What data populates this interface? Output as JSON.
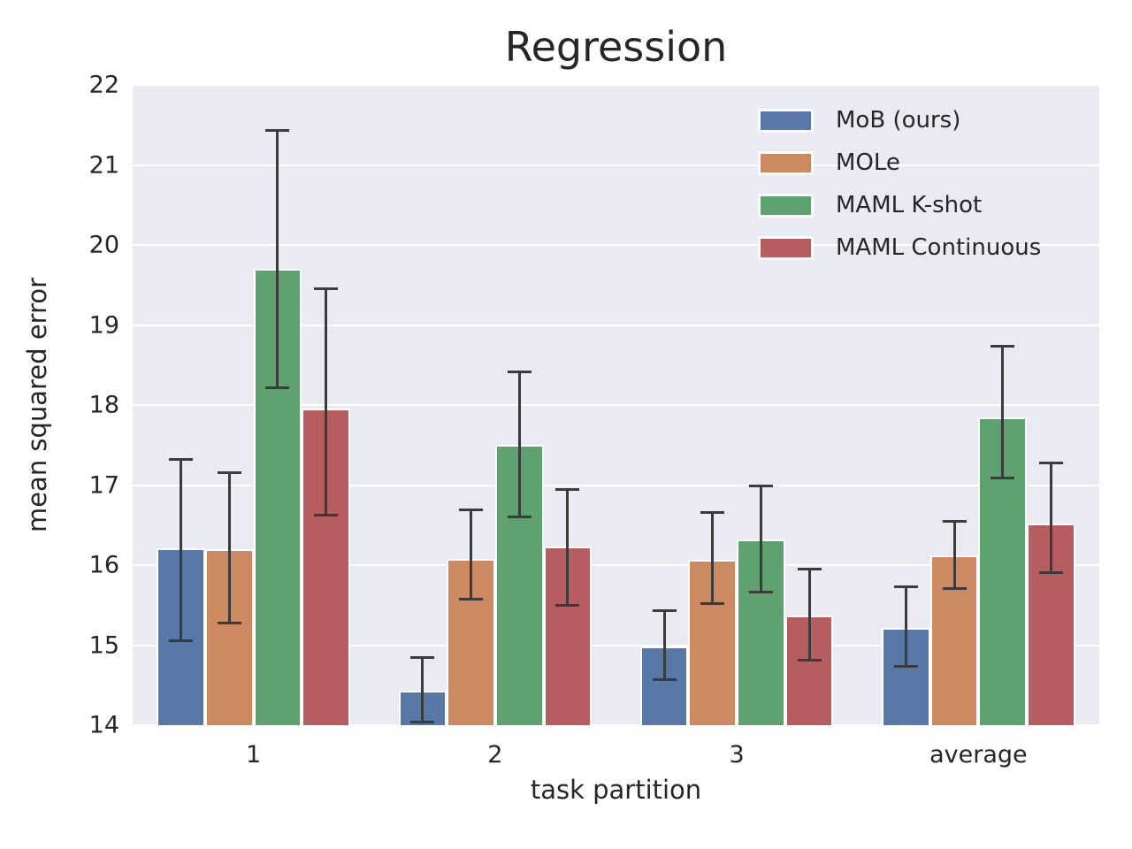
{
  "chart_data": {
    "type": "bar",
    "title": "Regression",
    "xlabel": "task partition",
    "ylabel": "mean squared error",
    "categories": [
      "1",
      "2",
      "3",
      "average"
    ],
    "ylim": [
      14,
      22
    ],
    "yticks": [
      14,
      15,
      16,
      17,
      18,
      19,
      20,
      21,
      22
    ],
    "grid": true,
    "legend_position": "upper right",
    "plot_bg_color": "#eaeaf2",
    "grid_color": "#ffffff",
    "error_bar_color": "#3b3b3b",
    "text_color": "#262626",
    "series": [
      {
        "name": "MoB (ours)",
        "color": "#5878a8",
        "values": [
          16.21,
          14.43,
          14.98,
          15.21
        ],
        "ci_low": [
          15.06,
          14.04,
          14.57,
          14.74
        ],
        "ci_high": [
          17.32,
          14.84,
          15.43,
          15.73
        ]
      },
      {
        "name": "MOLe",
        "color": "#cd8a62",
        "values": [
          16.2,
          16.08,
          16.07,
          16.12
        ],
        "ci_low": [
          15.28,
          15.58,
          15.52,
          15.71
        ],
        "ci_high": [
          17.15,
          16.69,
          16.66,
          16.55
        ]
      },
      {
        "name": "MAML K-shot",
        "color": "#5fa170",
        "values": [
          19.7,
          17.5,
          16.32,
          17.84
        ],
        "ci_low": [
          18.22,
          16.6,
          15.66,
          17.09
        ],
        "ci_high": [
          21.43,
          18.41,
          16.99,
          18.73
        ]
      },
      {
        "name": "MAML Continuous",
        "color": "#b55d60",
        "values": [
          17.96,
          16.23,
          15.37,
          16.52
        ],
        "ci_low": [
          16.62,
          15.5,
          14.81,
          15.91
        ],
        "ci_high": [
          19.45,
          16.95,
          15.95,
          17.28
        ]
      }
    ]
  }
}
